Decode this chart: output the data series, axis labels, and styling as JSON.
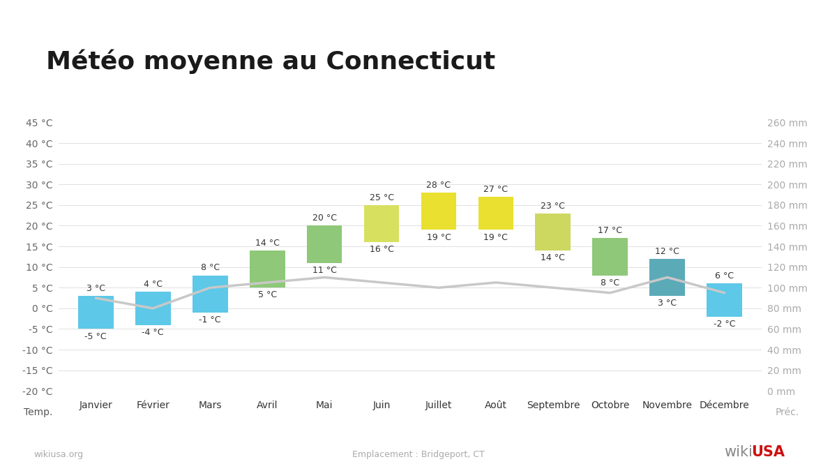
{
  "title": "Météo moyenne au Connecticut",
  "months": [
    "Janvier",
    "Février",
    "Mars",
    "Avril",
    "Mai",
    "Juin",
    "Juillet",
    "Août",
    "Septembre",
    "Octobre",
    "Novembre",
    "Décembre"
  ],
  "temp_max": [
    3,
    4,
    8,
    14,
    20,
    25,
    28,
    27,
    23,
    17,
    12,
    6
  ],
  "temp_min": [
    -5,
    -4,
    -1,
    5,
    11,
    16,
    19,
    19,
    14,
    8,
    3,
    -2
  ],
  "precip_mm": [
    90,
    80,
    100,
    105,
    110,
    105,
    100,
    105,
    100,
    95,
    110,
    95
  ],
  "bar_colors": [
    "#5dc8e8",
    "#5dc8e8",
    "#5dc8e8",
    "#8ec878",
    "#8ec878",
    "#d8e060",
    "#eae030",
    "#eae030",
    "#ccd860",
    "#8ec878",
    "#5baab8",
    "#5dc8e8"
  ],
  "ylim_left": [
    -20,
    45
  ],
  "ylim_right": [
    0,
    260
  ],
  "yticks_left": [
    -20,
    -15,
    -10,
    -5,
    0,
    5,
    10,
    15,
    20,
    25,
    30,
    35,
    40,
    45
  ],
  "yticks_right": [
    0,
    20,
    40,
    60,
    80,
    100,
    120,
    140,
    160,
    180,
    200,
    220,
    240,
    260
  ],
  "xlabel_left": "Temp.",
  "xlabel_right": "Préc.",
  "footer_left": "wikiusa.org",
  "footer_center": "Emplacement : Bridgeport, CT",
  "footer_right_wiki": "wiki",
  "footer_right_usa": "USA",
  "background_color": "#ffffff",
  "bar_width": 0.62,
  "line_color": "#c8c8c8",
  "line_width": 2.5,
  "title_fontsize": 26,
  "tick_fontsize": 10,
  "label_fontsize": 9.5
}
